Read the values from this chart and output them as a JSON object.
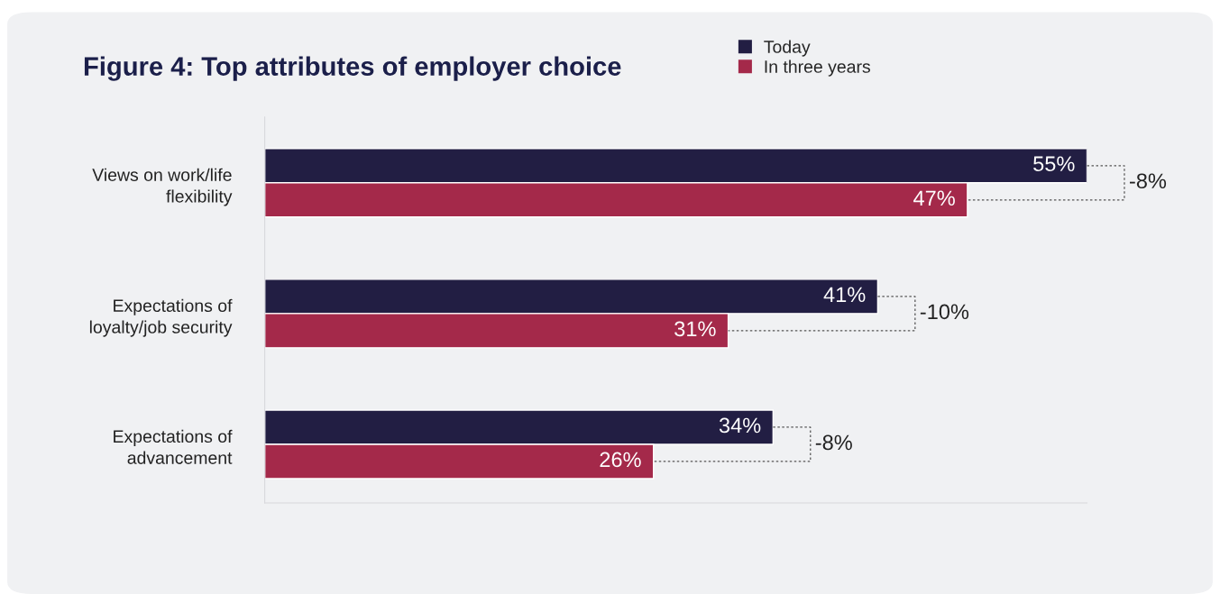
{
  "chart_data": {
    "type": "bar",
    "orientation": "horizontal",
    "title": "Figure 4: Top attributes of employer choice",
    "categories": [
      "Views on work/life flexibility",
      "Expectations of loyalty/job security",
      "Expectations of advancement"
    ],
    "series": [
      {
        "name": "Today",
        "color": "#221e43",
        "values": [
          55,
          41,
          34
        ],
        "value_labels": [
          "55%",
          "41%",
          "34%"
        ]
      },
      {
        "name": "In three years",
        "color": "#a4294a",
        "values": [
          47,
          31,
          26
        ],
        "value_labels": [
          "47%",
          "31%",
          "26%"
        ]
      }
    ],
    "xlim": [
      0,
      55
    ],
    "tick_labels": "y",
    "legend": "top",
    "grid": false,
    "annotations": [
      "-8%",
      "-10%",
      "-8%"
    ]
  }
}
